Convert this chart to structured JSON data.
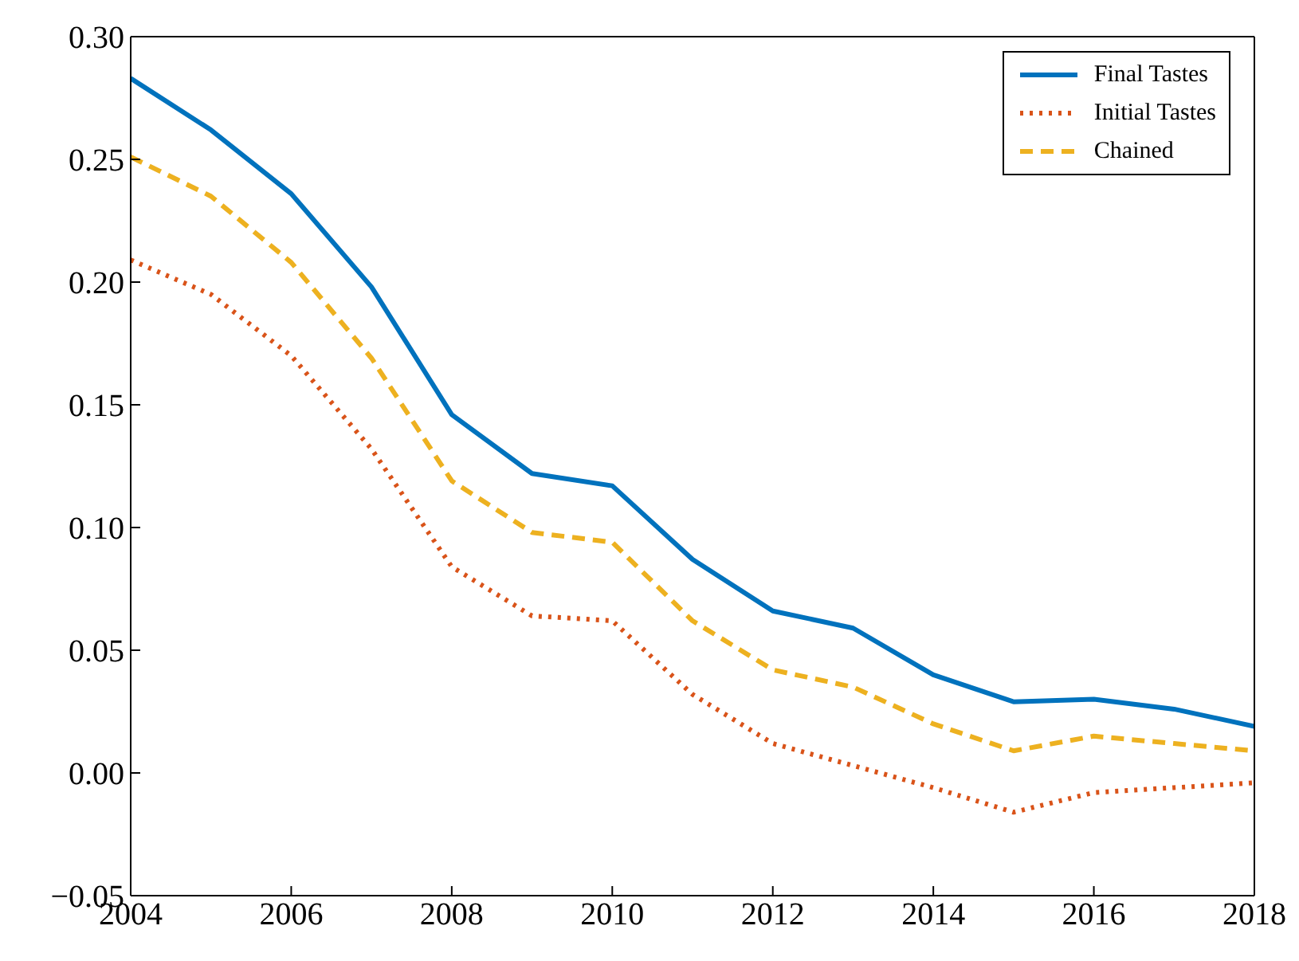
{
  "chart_data": {
    "type": "line",
    "x": [
      2004,
      2005,
      2006,
      2007,
      2008,
      2009,
      2010,
      2011,
      2012,
      2013,
      2014,
      2015,
      2016,
      2017,
      2018
    ],
    "series": [
      {
        "name": "Final Tastes",
        "color": "#0072bd",
        "line_style": "solid",
        "values": [
          0.283,
          0.262,
          0.236,
          0.198,
          0.146,
          0.122,
          0.117,
          0.087,
          0.066,
          0.059,
          0.04,
          0.029,
          0.03,
          0.026,
          0.019
        ]
      },
      {
        "name": "Initial Tastes",
        "color": "#d95319",
        "line_style": "dotted",
        "values": [
          0.209,
          0.195,
          0.17,
          0.132,
          0.084,
          0.064,
          0.062,
          0.032,
          0.012,
          0.003,
          -0.006,
          -0.016,
          -0.008,
          -0.006,
          -0.004
        ]
      },
      {
        "name": "Chained",
        "color": "#edb120",
        "line_style": "dashed",
        "values": [
          0.251,
          0.235,
          0.208,
          0.169,
          0.119,
          0.098,
          0.094,
          0.062,
          0.042,
          0.035,
          0.02,
          0.009,
          0.015,
          0.012,
          0.009
        ]
      }
    ],
    "xlim": [
      2004,
      2018
    ],
    "xticks": [
      2004,
      2006,
      2008,
      2010,
      2012,
      2014,
      2016,
      2018
    ],
    "ylim": [
      -0.05,
      0.3
    ],
    "yticks": [
      {
        "value": -0.05,
        "label": "−0.05"
      },
      {
        "value": 0,
        "label": "0.00"
      },
      {
        "value": 0.05,
        "label": "0.05"
      },
      {
        "value": 0.1,
        "label": "0.10"
      },
      {
        "value": 0.15,
        "label": "0.15"
      },
      {
        "value": 0.2,
        "label": "0.20"
      },
      {
        "value": 0.25,
        "label": "0.25"
      },
      {
        "value": 0.3,
        "label": "0.30"
      }
    ],
    "grid": false,
    "legend": "top right",
    "marker": "none"
  }
}
